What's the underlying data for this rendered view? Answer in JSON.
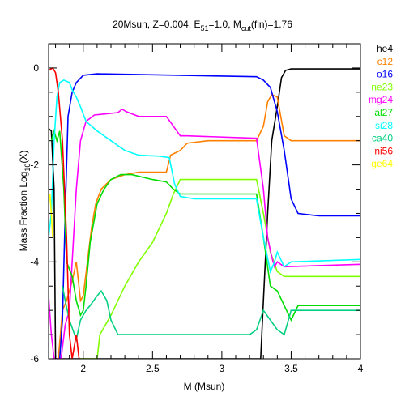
{
  "chart_data": {
    "type": "line",
    "title": {
      "main": "20Msun, Z=0.004, E",
      "e_sub": "51",
      "mid": "=1.0, M",
      "m_sub": "cut",
      "end": "(fin)=1.76"
    },
    "xlabel": "M (Msun)",
    "ylabel": {
      "main": "Mass Fraction Log",
      "sub": "10",
      "end": "(X)"
    },
    "xlim": [
      1.75,
      4.0
    ],
    "ylim": [
      -6,
      0.5
    ],
    "x_ticks": [
      "2",
      "2.5",
      "3",
      "3.5",
      "4"
    ],
    "y_ticks": [
      "0",
      "-2",
      "-4",
      "-6"
    ],
    "x_tick_values": [
      2,
      2.5,
      3,
      3.5,
      4
    ],
    "y_tick_values": [
      0,
      -2,
      -4,
      -6
    ],
    "grid": false,
    "legend_position": "right, outside plot",
    "series": [
      {
        "name": "he4",
        "color": "#000000",
        "points": [
          [
            1.75,
            -1.25
          ],
          [
            1.77,
            -1.3
          ],
          [
            1.79,
            -2.5
          ],
          [
            1.8,
            -6
          ],
          [
            3.28,
            -6
          ],
          [
            3.3,
            -4.8
          ],
          [
            3.33,
            -3.0
          ],
          [
            3.36,
            -1.5
          ],
          [
            3.4,
            -0.8
          ],
          [
            3.43,
            -0.2
          ],
          [
            3.46,
            -0.05
          ],
          [
            3.5,
            -0.02
          ],
          [
            4.0,
            -0.02
          ]
        ]
      },
      {
        "name": "c12",
        "color": "#ff8000",
        "points": [
          [
            1.82,
            -6
          ],
          [
            1.85,
            -5.0
          ],
          [
            1.88,
            -4.8
          ],
          [
            1.92,
            -4.4
          ],
          [
            1.95,
            -4.0
          ],
          [
            1.98,
            -4.8
          ],
          [
            2.0,
            -4.7
          ],
          [
            2.03,
            -4.0
          ],
          [
            2.06,
            -3.3
          ],
          [
            2.09,
            -2.8
          ],
          [
            2.13,
            -2.5
          ],
          [
            2.2,
            -2.3
          ],
          [
            2.3,
            -2.2
          ],
          [
            2.4,
            -2.15
          ],
          [
            2.55,
            -2.15
          ],
          [
            2.6,
            -2.15
          ],
          [
            2.63,
            -1.8
          ],
          [
            2.7,
            -1.7
          ],
          [
            2.75,
            -1.55
          ],
          [
            2.9,
            -1.5
          ],
          [
            3.25,
            -1.5
          ],
          [
            3.3,
            -1.2
          ],
          [
            3.33,
            -0.7
          ],
          [
            3.36,
            -0.55
          ],
          [
            3.4,
            -0.6
          ],
          [
            3.45,
            -1.4
          ],
          [
            3.5,
            -1.5
          ],
          [
            4.0,
            -1.5
          ]
        ]
      },
      {
        "name": "o16",
        "color": "#0000ff",
        "points": [
          [
            1.83,
            -6
          ],
          [
            1.85,
            -5.2
          ],
          [
            1.87,
            -3.0
          ],
          [
            1.89,
            -1.0
          ],
          [
            1.92,
            -0.5
          ],
          [
            1.95,
            -0.3
          ],
          [
            2.0,
            -0.15
          ],
          [
            2.1,
            -0.12
          ],
          [
            3.25,
            -0.18
          ],
          [
            3.3,
            -0.25
          ],
          [
            3.35,
            -0.4
          ],
          [
            3.4,
            -0.9
          ],
          [
            3.45,
            -1.7
          ],
          [
            3.5,
            -2.7
          ],
          [
            3.55,
            -3.0
          ],
          [
            3.7,
            -3.05
          ],
          [
            4.0,
            -3.05
          ]
        ]
      },
      {
        "name": "ne23",
        "color": "#80ff00",
        "points": [
          [
            1.98,
            -6
          ],
          [
            2.02,
            -6
          ],
          [
            2.05,
            -6
          ],
          [
            2.08,
            -6
          ],
          [
            2.1,
            -6
          ],
          [
            2.12,
            -5.5
          ],
          [
            2.2,
            -5.1
          ],
          [
            2.3,
            -4.5
          ],
          [
            2.4,
            -4.0
          ],
          [
            2.5,
            -3.6
          ],
          [
            2.6,
            -3.0
          ],
          [
            2.65,
            -2.6
          ],
          [
            2.7,
            -2.3
          ],
          [
            2.75,
            -2.3
          ],
          [
            3.25,
            -2.3
          ],
          [
            3.3,
            -3.0
          ],
          [
            3.35,
            -3.8
          ],
          [
            3.4,
            -4.2
          ],
          [
            3.45,
            -4.3
          ],
          [
            4.0,
            -4.3
          ]
        ]
      },
      {
        "name": "mg24",
        "color": "#ff00ff",
        "points": [
          [
            1.75,
            -4.7
          ],
          [
            1.77,
            -5.5
          ],
          [
            1.79,
            -6
          ],
          [
            1.84,
            -6
          ],
          [
            1.87,
            -5.3
          ],
          [
            1.9,
            -5.0
          ],
          [
            1.92,
            -4.0
          ],
          [
            1.95,
            -2.5
          ],
          [
            1.98,
            -1.5
          ],
          [
            2.02,
            -1.1
          ],
          [
            2.08,
            -0.97
          ],
          [
            2.15,
            -0.95
          ],
          [
            2.25,
            -0.92
          ],
          [
            2.28,
            -0.85
          ],
          [
            2.31,
            -0.9
          ],
          [
            2.4,
            -1.0
          ],
          [
            2.55,
            -1.0
          ],
          [
            2.6,
            -1.0
          ],
          [
            2.65,
            -1.2
          ],
          [
            2.7,
            -1.4
          ],
          [
            2.75,
            -1.4
          ],
          [
            3.25,
            -1.45
          ],
          [
            3.3,
            -2.5
          ],
          [
            3.33,
            -3.5
          ],
          [
            3.36,
            -3.9
          ],
          [
            3.38,
            -4.1
          ],
          [
            3.4,
            -4.0
          ],
          [
            3.45,
            -4.1
          ],
          [
            4.0,
            -4.05
          ]
        ]
      },
      {
        "name": "al27",
        "color": "#00dd00",
        "points": [
          [
            1.77,
            -1.5
          ],
          [
            1.79,
            -1.3
          ],
          [
            1.81,
            -1.5
          ],
          [
            1.83,
            -1.3
          ],
          [
            1.86,
            -2.5
          ],
          [
            1.88,
            -4.0
          ],
          [
            1.92,
            -4.3
          ],
          [
            1.95,
            -4.8
          ],
          [
            1.98,
            -5.1
          ],
          [
            2.0,
            -5.0
          ],
          [
            2.02,
            -4.5
          ],
          [
            2.05,
            -3.6
          ],
          [
            2.1,
            -2.8
          ],
          [
            2.15,
            -2.5
          ],
          [
            2.2,
            -2.3
          ],
          [
            2.27,
            -2.2
          ],
          [
            2.35,
            -2.2
          ],
          [
            2.5,
            -2.3
          ],
          [
            2.6,
            -2.35
          ],
          [
            2.65,
            -2.5
          ],
          [
            2.7,
            -2.6
          ],
          [
            3.25,
            -2.6
          ],
          [
            3.3,
            -3.5
          ],
          [
            3.35,
            -4.5
          ],
          [
            3.4,
            -4.6
          ],
          [
            3.45,
            -4.9
          ],
          [
            3.5,
            -5.2
          ],
          [
            3.55,
            -4.9
          ],
          [
            4.0,
            -4.9
          ]
        ]
      },
      {
        "name": "si28",
        "color": "#00ffff",
        "points": [
          [
            1.75,
            -3.5
          ],
          [
            1.77,
            -3.0
          ],
          [
            1.79,
            -1.5
          ],
          [
            1.81,
            -0.6
          ],
          [
            1.83,
            -0.3
          ],
          [
            1.86,
            -0.25
          ],
          [
            1.9,
            -0.3
          ],
          [
            1.92,
            -0.45
          ],
          [
            1.95,
            -0.6
          ],
          [
            1.98,
            -0.8
          ],
          [
            2.02,
            -1.1
          ],
          [
            2.1,
            -1.3
          ],
          [
            2.2,
            -1.5
          ],
          [
            2.3,
            -1.7
          ],
          [
            2.4,
            -1.8
          ],
          [
            2.55,
            -1.82
          ],
          [
            2.62,
            -1.85
          ],
          [
            2.66,
            -2.4
          ],
          [
            2.7,
            -2.65
          ],
          [
            2.8,
            -2.7
          ],
          [
            3.25,
            -2.7
          ],
          [
            3.3,
            -3.5
          ],
          [
            3.35,
            -4.2
          ],
          [
            3.38,
            -4.0
          ],
          [
            3.4,
            -3.8
          ],
          [
            3.45,
            -4.1
          ],
          [
            3.5,
            -4.0
          ],
          [
            4.0,
            -3.95
          ]
        ]
      },
      {
        "name": "ca40",
        "color": "#00d080",
        "points": [
          [
            1.85,
            -4.5
          ],
          [
            1.87,
            -4.8
          ],
          [
            1.9,
            -5.2
          ],
          [
            1.95,
            -5.6
          ],
          [
            1.98,
            -5.2
          ],
          [
            2.02,
            -5.0
          ],
          [
            2.05,
            -4.9
          ],
          [
            2.1,
            -4.7
          ],
          [
            2.13,
            -4.6
          ],
          [
            2.17,
            -4.8
          ],
          [
            2.2,
            -5.2
          ],
          [
            2.25,
            -5.5
          ],
          [
            2.3,
            -5.5
          ],
          [
            3.2,
            -5.5
          ],
          [
            3.25,
            -5.4
          ],
          [
            3.3,
            -5.0
          ],
          [
            3.35,
            -5.2
          ],
          [
            3.4,
            -5.4
          ],
          [
            3.45,
            -5.5
          ],
          [
            3.5,
            -5.0
          ],
          [
            4.0,
            -5.0
          ]
        ]
      },
      {
        "name": "ni56",
        "color": "#ff0000",
        "points": [
          [
            1.75,
            -0.05
          ],
          [
            1.78,
            0.0
          ],
          [
            1.8,
            -0.1
          ],
          [
            1.82,
            -0.5
          ],
          [
            1.85,
            -1.5
          ],
          [
            1.88,
            -3.5
          ],
          [
            1.9,
            -5.5
          ],
          [
            1.92,
            -6
          ],
          [
            1.95,
            -5.5
          ],
          [
            1.97,
            -6
          ]
        ]
      },
      {
        "name": "ge64",
        "color": "#ffff00",
        "points": [
          [
            1.75,
            -2.8
          ],
          [
            1.76,
            -2.6
          ],
          [
            1.77,
            -3.0
          ],
          [
            1.78,
            -3.5
          ]
        ]
      }
    ]
  }
}
